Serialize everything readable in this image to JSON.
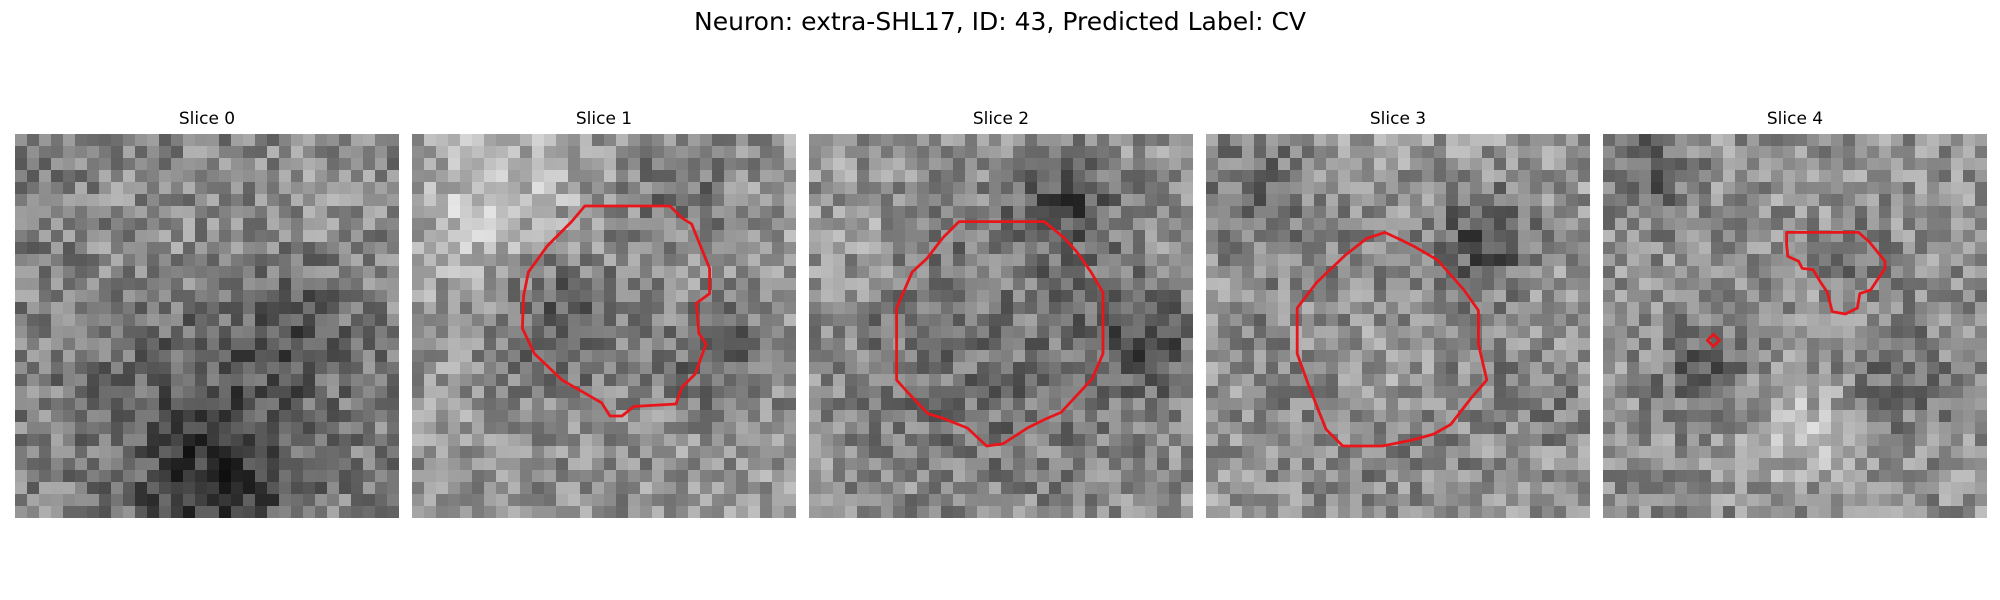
{
  "title": "Neuron: extra-SHL17, ID: 43, Predicted Label: CV",
  "slices": [
    {
      "label": "Slice 0",
      "has_contour": false
    },
    {
      "label": "Slice 1",
      "has_contour": true
    },
    {
      "label": "Slice 2",
      "has_contour": true
    },
    {
      "label": "Slice 3",
      "has_contour": true
    },
    {
      "label": "Slice 4",
      "has_contour": true
    }
  ],
  "colors": {
    "contour": "#e8161b",
    "background": "#ffffff"
  },
  "image_style": "grayscale noisy microscopy patches with red segmentation contours"
}
